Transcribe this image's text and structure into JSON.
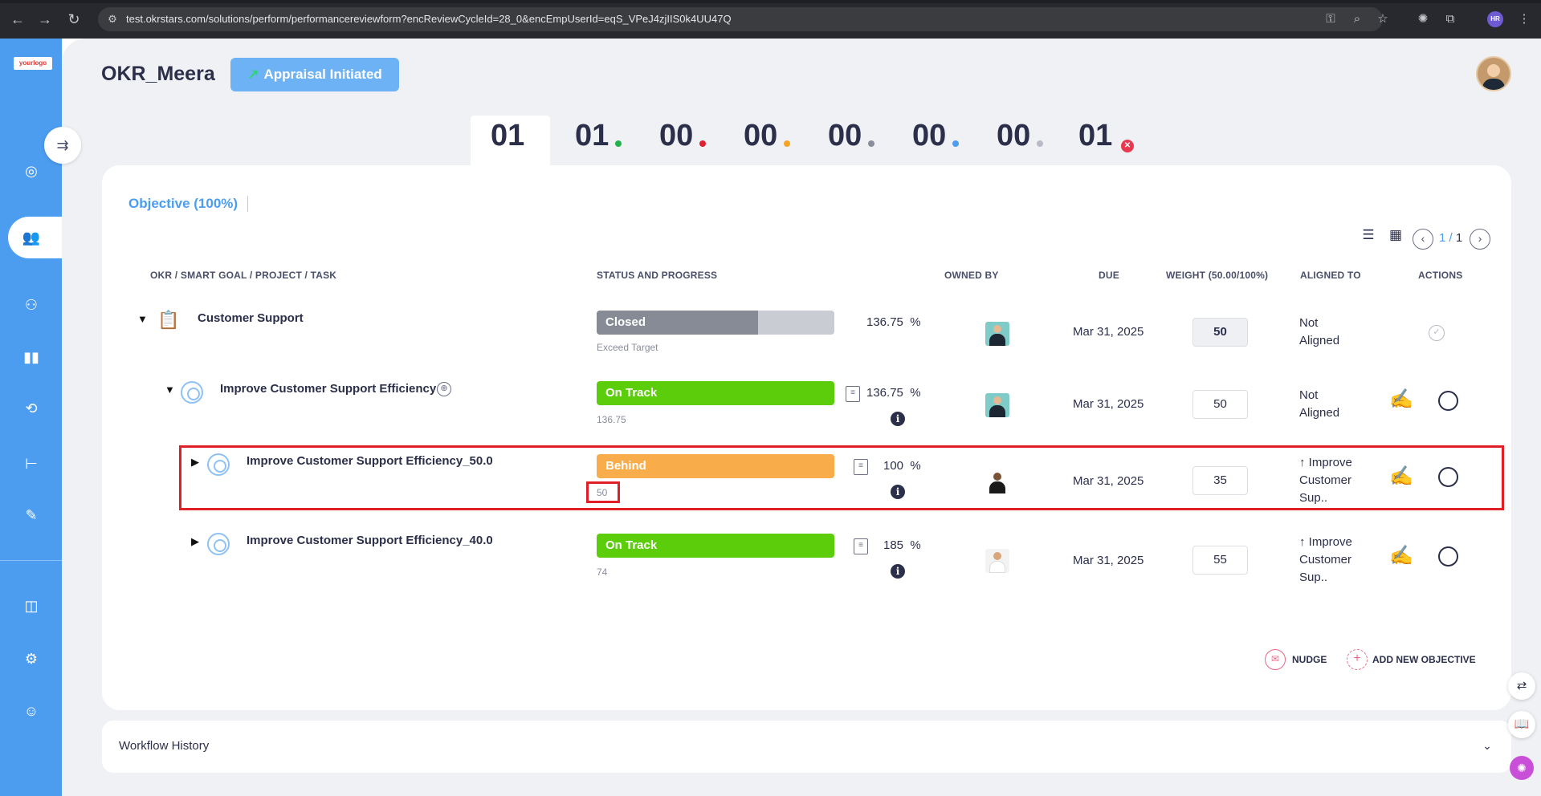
{
  "browser": {
    "url": "test.okrstars.com/solutions/perform/performancereviewform?encReviewCycleId=28_0&encEmpUserId=eqS_VPeJ4zjIIS0k4UU47Q",
    "back_icon": "back-arrow-icon",
    "forward_icon": "forward-arrow-icon",
    "reload_icon": "reload-icon",
    "profile_badge": "HR"
  },
  "sidebar": {
    "logo": {
      "text": "your",
      "accent": "logo"
    }
  },
  "header": {
    "title": "OKR_Meera",
    "status_button": "Appraisal Initiated",
    "status_arrow": "↗"
  },
  "counters": [
    {
      "value": "01",
      "color": null
    },
    {
      "value": "01",
      "color": "#22b14c"
    },
    {
      "value": "00",
      "color": "#e0202f"
    },
    {
      "value": "00",
      "color": "#f5a623"
    },
    {
      "value": "00",
      "color": "#8a8e9c"
    },
    {
      "value": "00",
      "color": "#4c9cf0"
    },
    {
      "value": "00",
      "color": "#b8bbc6"
    },
    {
      "value": "01",
      "color": "#e8394f"
    }
  ],
  "tabs": {
    "objective": "Objective (100%)"
  },
  "pager": {
    "current": "1",
    "separator": "/",
    "total": "1"
  },
  "table": {
    "headers": {
      "okr": "OKR / SMART GOAL / PROJECT / TASK",
      "status": "STATUS AND PROGRESS",
      "owned_by": "OWNED BY",
      "due": "DUE",
      "weight": "WEIGHT (50.00/100%)",
      "aligned_to": "ALIGNED TO",
      "actions": "ACTIONS"
    },
    "rows": [
      {
        "title": "Customer Support",
        "status": "Closed",
        "progress_fraction": 0.68,
        "sub": "Exceed Target",
        "percent": "136.75",
        "pct_sign": "%",
        "due": "Mar 31, 2025",
        "weight": "50",
        "aligned_line1": "Not",
        "aligned_line2": "Aligned",
        "aligned_line3": ""
      },
      {
        "title": "Improve Customer Support Efficiency",
        "status": "On Track",
        "sub": "136.75",
        "percent": "136.75",
        "pct_sign": "%",
        "due": "Mar 31, 2025",
        "weight": "50",
        "aligned_line1": "Not",
        "aligned_line2": "Aligned",
        "aligned_line3": ""
      },
      {
        "title": "Improve Customer Support Efficiency_50.0",
        "status": "Behind",
        "sub": "50",
        "percent": "100",
        "pct_sign": "%",
        "due": "Mar 31, 2025",
        "weight": "35",
        "aligned_line1": "↑ Improve",
        "aligned_line2": "Customer",
        "aligned_line3": "Sup.."
      },
      {
        "title": "Improve Customer Support Efficiency_40.0",
        "status": "On Track",
        "sub": "74",
        "percent": "185",
        "pct_sign": "%",
        "due": "Mar 31, 2025",
        "weight": "55",
        "aligned_line1": "↑ Improve",
        "aligned_line2": "Customer",
        "aligned_line3": "Sup.."
      }
    ]
  },
  "actions": {
    "nudge": "NUDGE",
    "add_objective": "ADD NEW OBJECTIVE"
  },
  "workflow": {
    "label": "Workflow History"
  },
  "colors": {
    "sidebar": "#4c9cf0",
    "on_track": "#5ccd0a",
    "behind": "#f8ac4a",
    "closed": "#868b96",
    "highlight": "#e01f26"
  }
}
